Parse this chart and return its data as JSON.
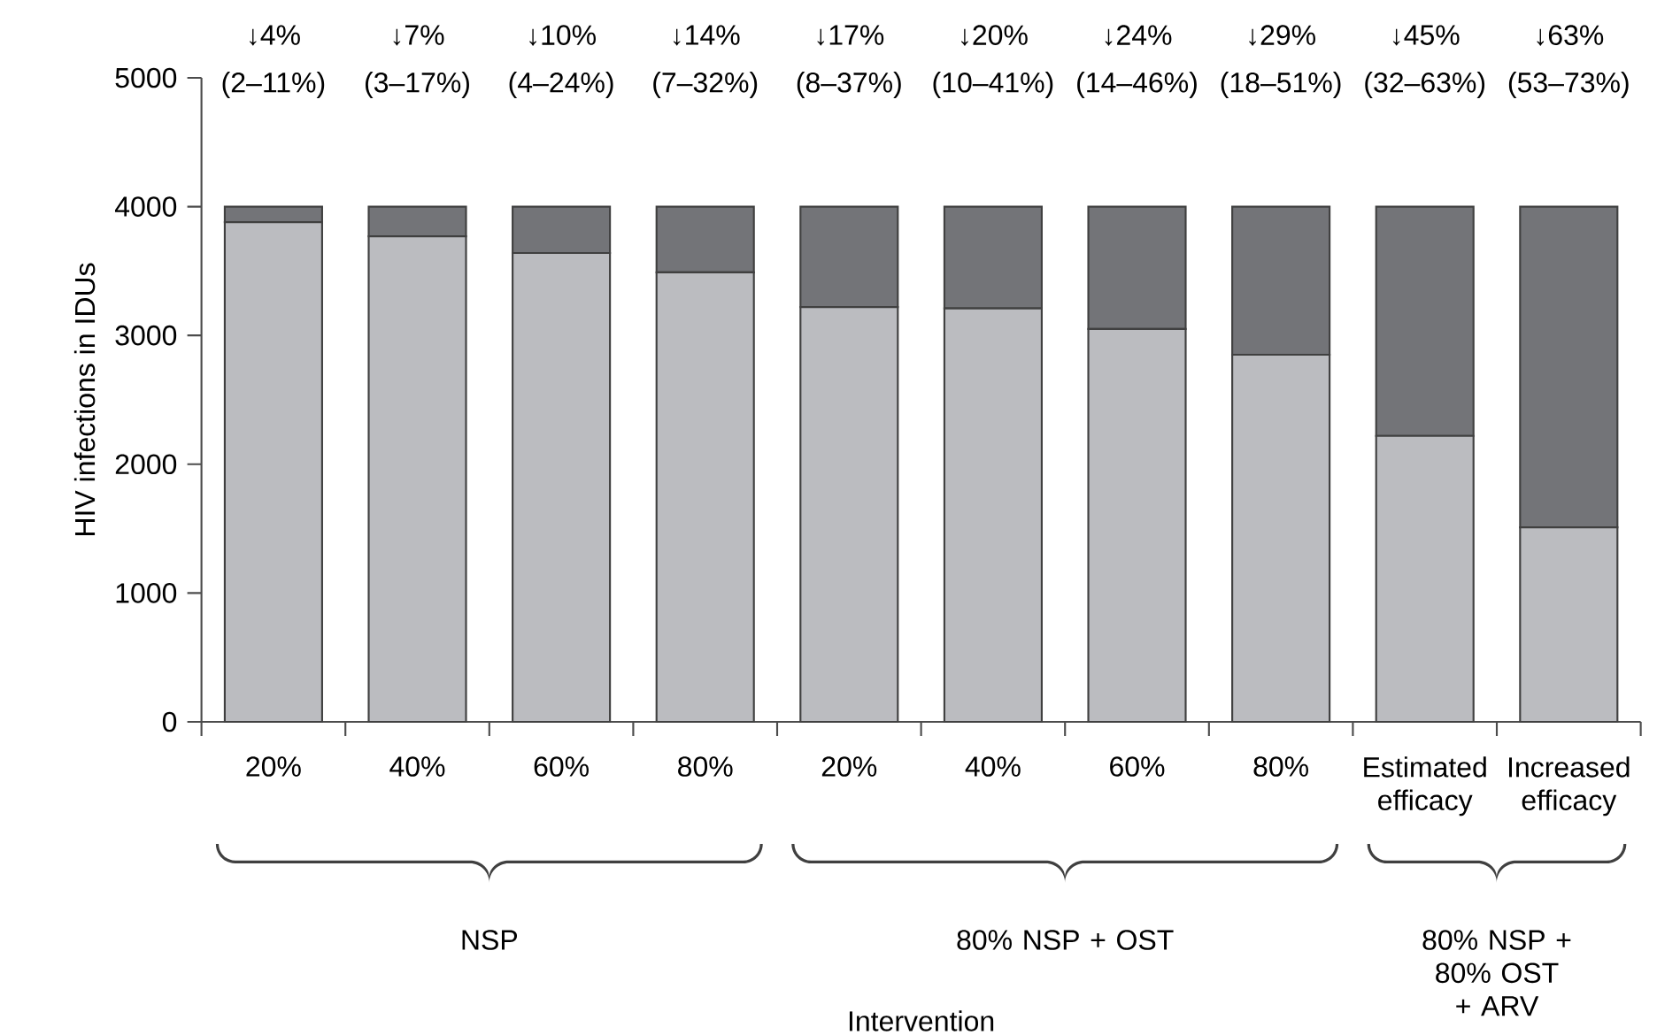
{
  "chart_data": {
    "type": "bar",
    "stacked": true,
    "ylabel": "HIV infections in IDUs",
    "categories": [
      "20%",
      "40%",
      "60%",
      "80%",
      "20%",
      "40%",
      "60%",
      "80%",
      "Estimated efficacy",
      "Increased efficacy"
    ],
    "series": [
      {
        "color": "#bbbcc0",
        "values": [
          3880,
          3770,
          3640,
          3490,
          3220,
          3210,
          3050,
          2850,
          2220,
          1510
        ]
      },
      {
        "color": "#737478",
        "values": [
          120,
          230,
          360,
          510,
          780,
          790,
          950,
          1150,
          1780,
          2490
        ]
      }
    ],
    "ylim": [
      0,
      5000
    ],
    "yticks": [
      0,
      1000,
      2000,
      3000,
      4000,
      5000
    ],
    "annotations": [
      "↓4%",
      "↓7%",
      "↓10%",
      "↓14%",
      "↓17%",
      "↓20%",
      "↓24%",
      "↓29%",
      "↓45%",
      "↓63%",
      "(2–11%)",
      "(3–17%)",
      "(4–24%)",
      "(7–32%)",
      "(8–37%)",
      "(10–41%)",
      "(14–46%)",
      "(18–51%)",
      "(32–63%)",
      "(53–73%)",
      "NSP",
      "80% NSP + OST",
      "80% NSP + 80% OST + ARV",
      "Intervention"
    ]
  }
}
